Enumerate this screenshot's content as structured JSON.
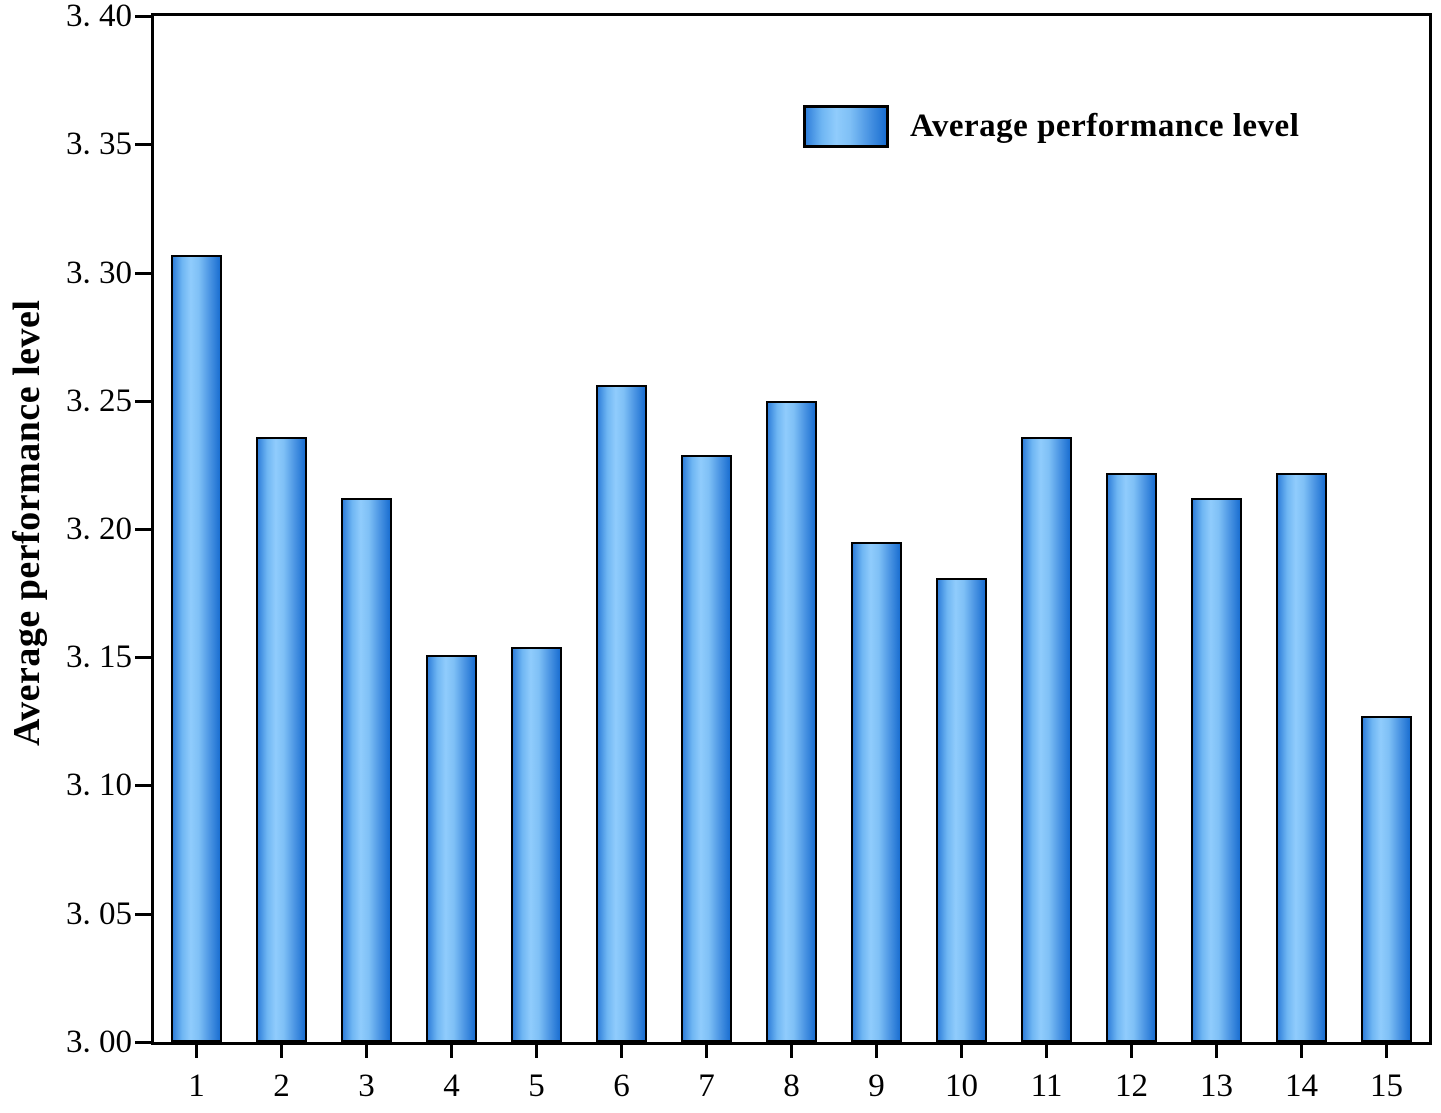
{
  "chart_data": {
    "type": "bar",
    "title": "",
    "xlabel": "",
    "ylabel": "Average performance level",
    "categories": [
      "1",
      "2",
      "3",
      "4",
      "5",
      "6",
      "7",
      "8",
      "9",
      "10",
      "11",
      "12",
      "13",
      "14",
      "15"
    ],
    "series": [
      {
        "name": "Average performance level",
        "values": [
          3.307,
          3.236,
          3.212,
          3.151,
          3.154,
          3.256,
          3.229,
          3.25,
          3.195,
          3.181,
          3.236,
          3.222,
          3.212,
          3.222,
          3.127
        ]
      }
    ],
    "ylim": [
      3.0,
      3.4
    ],
    "yticks": [
      3.0,
      3.05,
      3.1,
      3.15,
      3.2,
      3.25,
      3.3,
      3.35,
      3.4
    ],
    "ytick_labels": [
      "3. 00",
      "3. 05",
      "3. 10",
      "3. 15",
      "3. 20",
      "3. 25",
      "3. 30",
      "3. 35",
      "3. 40"
    ],
    "legend": {
      "entries": [
        "Average performance level"
      ],
      "position": "top-right"
    },
    "grid": false,
    "colors": {
      "bar_gradient": [
        "#3080db",
        "#90ccfc",
        "#1b6fd1"
      ],
      "bar_border": "#000000",
      "axis": "#000000",
      "background": "#ffffff",
      "text": "#000000"
    }
  }
}
